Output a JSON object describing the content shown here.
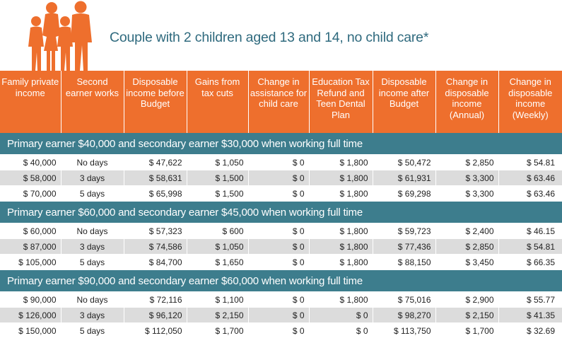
{
  "title": "Couple with 2 children aged 13 and 14, no child care*",
  "colors": {
    "header": "#ee6f2d",
    "group": "#3d7d8d",
    "title": "#2f6a7e",
    "shade": "#dcdcdc"
  },
  "icon": "family-silhouette-icon",
  "headers": [
    "Family private income",
    "Second earner works",
    "Disposable income before Budget",
    "Gains from tax cuts",
    "Change in assistance for child care",
    "Education Tax Refund and Teen Dental Plan",
    "Disposable income after Budget",
    "Change in disposable income (Annual)",
    "Change in disposable income (Weekly)"
  ],
  "groups": [
    {
      "label": "Primary earner $40,000 and secondary earner $30,000 when working full time",
      "rows": [
        [
          "$ 40,000",
          "No days",
          "$ 47,622",
          "$ 1,050",
          "$ 0",
          "$ 1,800",
          "$ 50,472",
          "$ 2,850",
          "$ 54.81"
        ],
        [
          "$ 58,000",
          "3 days",
          "$ 58,631",
          "$ 1,500",
          "$ 0",
          "$ 1,800",
          "$ 61,931",
          "$ 3,300",
          "$ 63.46"
        ],
        [
          "$ 70,000",
          "5 days",
          "$ 65,998",
          "$ 1,500",
          "$ 0",
          "$ 1,800",
          "$ 69,298",
          "$ 3,300",
          "$ 63.46"
        ]
      ]
    },
    {
      "label": "Primary earner $60,000 and secondary earner $45,000 when working full time",
      "rows": [
        [
          "$ 60,000",
          "No days",
          "$ 57,323",
          "$ 600",
          "$ 0",
          "$ 1,800",
          "$ 59,723",
          "$ 2,400",
          "$ 46.15"
        ],
        [
          "$ 87,000",
          "3 days",
          "$ 74,586",
          "$ 1,050",
          "$ 0",
          "$ 1,800",
          "$ 77,436",
          "$ 2,850",
          "$ 54.81"
        ],
        [
          "$ 105,000",
          "5 days",
          "$ 84,700",
          "$ 1,650",
          "$ 0",
          "$ 1,800",
          "$ 88,150",
          "$ 3,450",
          "$ 66.35"
        ]
      ]
    },
    {
      "label": "Primary earner $90,000 and secondary earner $60,000 when working full time",
      "rows": [
        [
          "$ 90,000",
          "No days",
          "$ 72,116",
          "$ 1,100",
          "$ 0",
          "$ 1,800",
          "$ 75,016",
          "$ 2,900",
          "$ 55.77"
        ],
        [
          "$ 126,000",
          "3 days",
          "$ 96,120",
          "$ 2,150",
          "$ 0",
          "$ 0",
          "$ 98,270",
          "$ 2,150",
          "$ 41.35"
        ],
        [
          "$ 150,000",
          "5 days",
          "$ 112,050",
          "$ 1,700",
          "$ 0",
          "$ 0",
          "$ 113,750",
          "$ 1,700",
          "$ 32.69"
        ]
      ]
    }
  ]
}
